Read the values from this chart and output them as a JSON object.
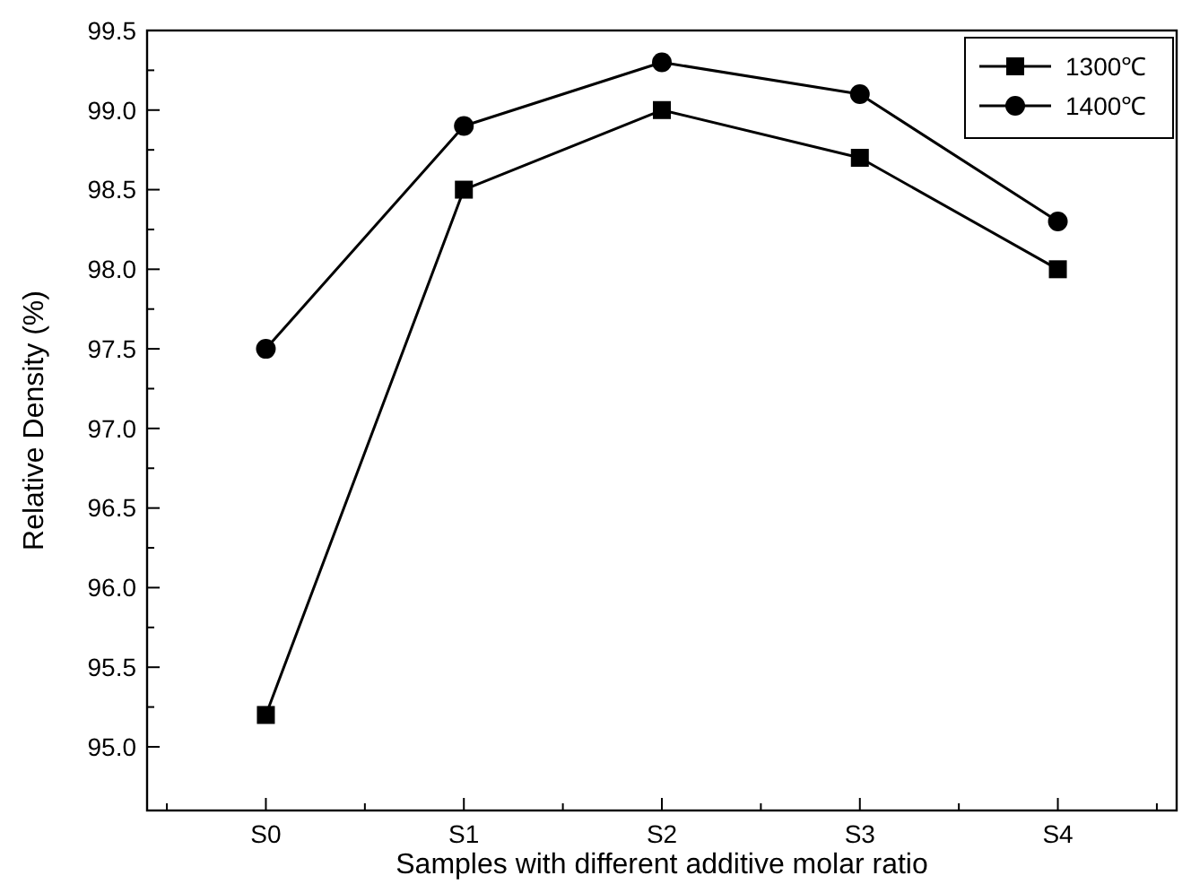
{
  "chart_data": {
    "type": "line",
    "xlabel": "Samples with different additive molar ratio",
    "ylabel": "Relative Density (%)",
    "categories": [
      "S0",
      "S1",
      "S2",
      "S3",
      "S4"
    ],
    "series": [
      {
        "name": "1300℃",
        "color": "#000000",
        "marker": "square",
        "values": [
          95.2,
          98.5,
          99.0,
          98.7,
          98.0
        ]
      },
      {
        "name": "1400℃",
        "color": "#000000",
        "marker": "circle",
        "values": [
          97.5,
          98.9,
          99.3,
          99.1,
          98.3
        ]
      }
    ],
    "ylim": [
      94.6,
      99.5
    ],
    "yticks": [
      {
        "value": 95,
        "label": "95.0"
      },
      95.5,
      {
        "value": 96,
        "label": "96.0"
      },
      96.5,
      {
        "value": 97,
        "label": "97.0"
      },
      97.5,
      {
        "value": 98,
        "label": "98.0"
      },
      98.5,
      {
        "value": 99,
        "label": "99.0"
      },
      99.5
    ],
    "legend": "top right",
    "grid": false,
    "line_style": "solid"
  }
}
